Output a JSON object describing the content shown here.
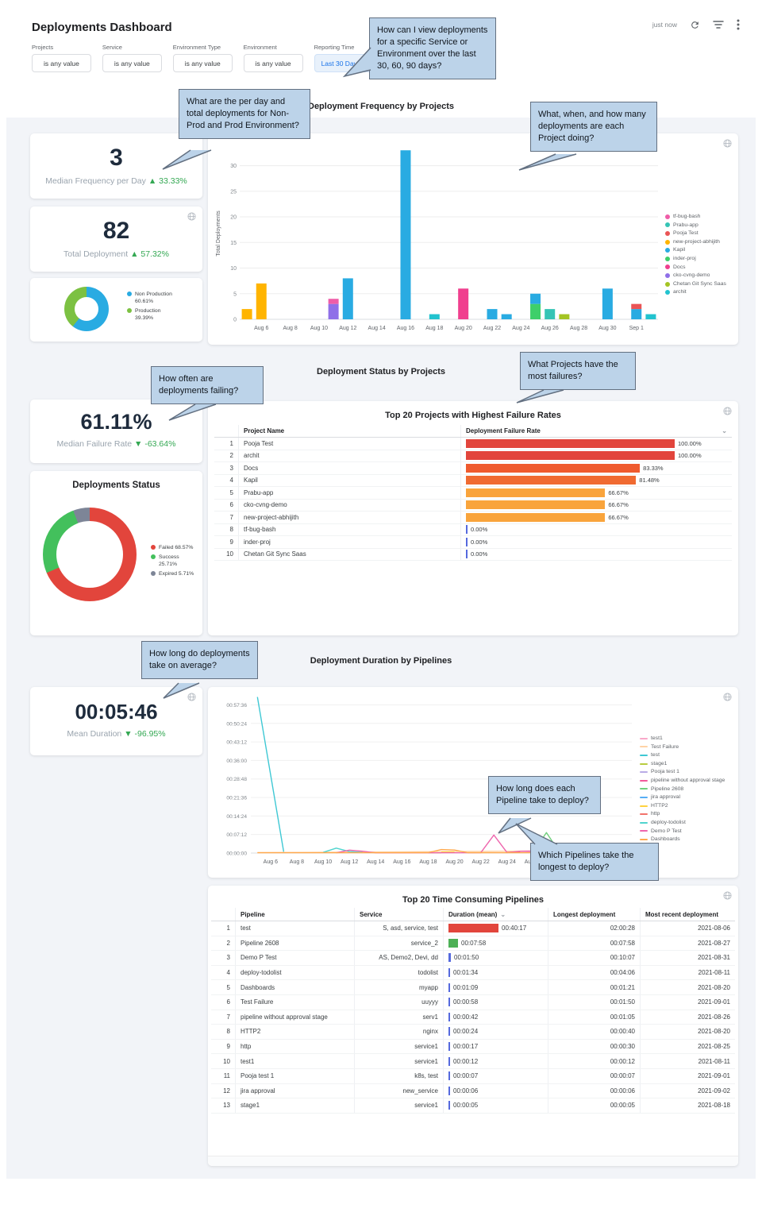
{
  "header": {
    "title": "Deployments Dashboard",
    "updated": "just now"
  },
  "filters": [
    {
      "label": "Projects",
      "value": "is any value",
      "highlighted": false
    },
    {
      "label": "Service",
      "value": "is any value",
      "highlighted": false
    },
    {
      "label": "Environment Type",
      "value": "is any value",
      "highlighted": false
    },
    {
      "label": "Environment",
      "value": "is any value",
      "highlighted": false
    },
    {
      "label": "Reporting Time",
      "value": "Last 30 Days",
      "highlighted": true
    }
  ],
  "sections": [
    "Deployment Frequency by Projects",
    "Deployment Status by Projects",
    "Deployment Duration by Pipelines"
  ],
  "callouts": [
    "How can I view deployments for a specific Service or Environment over the last 30, 60, 90 days?",
    "What are the per day and total deployments for Non-Prod and Prod Environment?",
    "What, when, and how many deployments are each Project doing?",
    "How often are deployments failing?",
    "What Projects have the most failures?",
    "How long do deployments take on average?",
    "How long does each Pipeline take to deploy?",
    "Which Pipelines take the longest to deploy?"
  ],
  "tiles": {
    "median_frequency": {
      "value": "3",
      "label": "Median Frequency per Day",
      "delta": "▲ 33.33%"
    },
    "total_deployments": {
      "value": "82",
      "label": "Total Deployment",
      "delta": "▲ 57.32%"
    },
    "median_failure_rate": {
      "value": "61.11%",
      "label": "Median Failure Rate",
      "delta": "▼ -63.64%"
    },
    "mean_duration": {
      "value": "00:05:46",
      "label": "Mean Duration",
      "delta": "▼ -96.95%"
    }
  },
  "env_donut": {
    "segments": [
      {
        "label": "Non Production",
        "pct": 60.61,
        "color": "#29abe2"
      },
      {
        "label": "Production",
        "pct": 39.39,
        "color": "#7cc142"
      }
    ]
  },
  "status_donut": {
    "title": "Deployments Status",
    "segments": [
      {
        "label": "Failed",
        "pct": 68.57,
        "color": "#e2453c"
      },
      {
        "label": "Success",
        "pct": 25.71,
        "color": "#43c05c"
      },
      {
        "label": "Expired",
        "pct": 5.71,
        "color": "#7d8597"
      }
    ]
  },
  "chart_data": [
    {
      "type": "bar",
      "title": "Deployment Frequency by Projects",
      "ylabel": "Total Deployments",
      "yticks": [
        0,
        5,
        10,
        15,
        20,
        25,
        30
      ],
      "ylim": [
        0,
        33.5
      ],
      "x_start": "Aug 5",
      "x_labels": [
        "Aug 6",
        "Aug 8",
        "Aug 10",
        "Aug 12",
        "Aug 14",
        "Aug 16",
        "Aug 18",
        "Aug 20",
        "Aug 22",
        "Aug 24",
        "Aug 26",
        "Aug 28",
        "Aug 30",
        "Sep 1"
      ],
      "legend": [
        {
          "name": "tf-bug-bash",
          "color": "#ef5da8"
        },
        {
          "name": "Prabu-app",
          "color": "#35c4b5"
        },
        {
          "name": "Pooja Test",
          "color": "#ea5455"
        },
        {
          "name": "new-project-abhijith",
          "color": "#ffb400"
        },
        {
          "name": "Kapil",
          "color": "#29abe2"
        },
        {
          "name": "inder-proj",
          "color": "#3ecf6a"
        },
        {
          "name": "Docs",
          "color": "#f03f8e"
        },
        {
          "name": "cko-cvng-demo",
          "color": "#8f6fe8"
        },
        {
          "name": "Chetan Git Sync Saas",
          "color": "#a4c423"
        },
        {
          "name": "archit",
          "color": "#22c3cf"
        }
      ],
      "bars": [
        {
          "day": 0,
          "segments": [
            {
              "project": "new-project-abhijith",
              "value": 2
            }
          ]
        },
        {
          "day": 1,
          "segments": [
            {
              "project": "new-project-abhijith",
              "value": 7
            }
          ]
        },
        {
          "day": 6,
          "segments": [
            {
              "project": "cko-cvng-demo",
              "value": 3
            },
            {
              "project": "tf-bug-bash",
              "value": 1
            }
          ]
        },
        {
          "day": 7,
          "segments": [
            {
              "project": "Kapil",
              "value": 8
            }
          ]
        },
        {
          "day": 11,
          "segments": [
            {
              "project": "Kapil",
              "value": 33
            }
          ]
        },
        {
          "day": 13,
          "segments": [
            {
              "project": "archit",
              "value": 1
            }
          ]
        },
        {
          "day": 15,
          "segments": [
            {
              "project": "Docs",
              "value": 6
            }
          ]
        },
        {
          "day": 17,
          "segments": [
            {
              "project": "Kapil",
              "value": 2
            }
          ]
        },
        {
          "day": 18,
          "segments": [
            {
              "project": "Kapil",
              "value": 1
            }
          ]
        },
        {
          "day": 20,
          "segments": [
            {
              "project": "inder-proj",
              "value": 3
            },
            {
              "project": "Kapil",
              "value": 2
            }
          ]
        },
        {
          "day": 21,
          "segments": [
            {
              "project": "Prabu-app",
              "value": 2
            }
          ]
        },
        {
          "day": 22,
          "segments": [
            {
              "project": "Chetan Git Sync Saas",
              "value": 1
            }
          ]
        },
        {
          "day": 25,
          "segments": [
            {
              "project": "Kapil",
              "value": 6
            }
          ]
        },
        {
          "day": 27,
          "segments": [
            {
              "project": "Kapil",
              "value": 2
            },
            {
              "project": "Pooja Test",
              "value": 1
            }
          ]
        },
        {
          "day": 28,
          "segments": [
            {
              "project": "archit",
              "value": 1
            }
          ]
        }
      ]
    },
    {
      "type": "line",
      "title": "Deployment Duration by Pipelines",
      "ytick_labels": [
        "00:00:00",
        "00:07:12",
        "00:14:24",
        "00:21:36",
        "00:28:48",
        "00:36:00",
        "00:43:12",
        "00:50:24",
        "00:57:36"
      ],
      "ytick_seconds": [
        0,
        432,
        864,
        1296,
        1728,
        2160,
        2592,
        3024,
        3456
      ],
      "ymax_seconds": 3650,
      "x_labels": [
        "Aug 6",
        "Aug 8",
        "Aug 10",
        "Aug 12",
        "Aug 14",
        "Aug 16",
        "Aug 18",
        "Aug 20",
        "Aug 22",
        "Aug 24",
        "Aug 26",
        "Aug 28",
        "Aug 30",
        "Sep 1"
      ],
      "series": [
        {
          "name": "test1",
          "color": "#f9a8c9",
          "points": [
            [
              6,
              12
            ],
            [
              7,
              12
            ]
          ]
        },
        {
          "name": "Test Failure",
          "color": "#ffd3a6",
          "points": [
            [
              0,
              10
            ],
            [
              27,
              58
            ]
          ]
        },
        {
          "name": "test",
          "color": "#3fc8d4",
          "points": [
            [
              0,
              3640
            ],
            [
              2,
              30
            ]
          ]
        },
        {
          "name": "stage1",
          "color": "#b8cc3f",
          "points": [
            [
              13,
              5
            ],
            [
              14,
              5
            ]
          ]
        },
        {
          "name": "Pooja test 1",
          "color": "#b9abe6",
          "points": [
            [
              27,
              7
            ],
            [
              28,
              7
            ]
          ]
        },
        {
          "name": "pipeline without approval stage",
          "color": "#f2599b",
          "points": [
            [
              20,
              42
            ],
            [
              21,
              35
            ]
          ]
        },
        {
          "name": "Pipeline 2608",
          "color": "#6fcf7c",
          "points": [
            [
              21,
              15
            ],
            [
              22,
              478
            ],
            [
              23,
              15
            ]
          ]
        },
        {
          "name": "jira approval",
          "color": "#56aef5",
          "points": [
            [
              27,
              6
            ],
            [
              28,
              6
            ]
          ]
        },
        {
          "name": "HTTP2",
          "color": "#ffd23f",
          "points": [
            [
              14,
              24
            ],
            [
              15,
              24
            ]
          ]
        },
        {
          "name": "http",
          "color": "#f2736b",
          "points": [
            [
              19,
              17
            ],
            [
              20,
              30
            ]
          ]
        },
        {
          "name": "deploy-todolist",
          "color": "#4fd4ce",
          "points": [
            [
              5,
              15
            ],
            [
              6,
              115
            ],
            [
              7,
              35
            ],
            [
              8,
              15
            ]
          ]
        },
        {
          "name": "Demo P Test",
          "color": "#ee66ad",
          "points": [
            [
              6,
              5
            ],
            [
              7,
              68
            ],
            [
              8,
              42
            ],
            [
              9,
              5
            ],
            [
              17,
              8
            ],
            [
              18,
              420
            ],
            [
              19,
              12
            ],
            [
              20,
              42
            ],
            [
              21,
              48
            ],
            [
              22,
              30
            ],
            [
              23,
              20
            ]
          ]
        },
        {
          "name": "Dashboards",
          "color": "#ffa94d",
          "points": [
            [
              0,
              8
            ],
            [
              13,
              10
            ],
            [
              14,
              82
            ],
            [
              15,
              70
            ],
            [
              16,
              10
            ],
            [
              27,
              8
            ]
          ]
        }
      ]
    }
  ],
  "failure_table": {
    "title": "Top 20 Projects with Highest Failure Rates",
    "columns": [
      "Project Name",
      "Deployment Failure Rate"
    ],
    "rows": [
      {
        "rank": 1,
        "name": "Pooja Test",
        "rate": "100.00%",
        "value": 100,
        "color": "#e2453c"
      },
      {
        "rank": 2,
        "name": "archit",
        "rate": "100.00%",
        "value": 100,
        "color": "#e2453c"
      },
      {
        "rank": 3,
        "name": "Docs",
        "rate": "83.33%",
        "value": 83.33,
        "color": "#ef5a2e"
      },
      {
        "rank": 4,
        "name": "Kapil",
        "rate": "81.48%",
        "value": 81.48,
        "color": "#f06a31"
      },
      {
        "rank": 5,
        "name": "Prabu-app",
        "rate": "66.67%",
        "value": 66.67,
        "color": "#f9a43c"
      },
      {
        "rank": 6,
        "name": "cko-cvng-demo",
        "rate": "66.67%",
        "value": 66.67,
        "color": "#f9a43c"
      },
      {
        "rank": 7,
        "name": "new-project-abhijith",
        "rate": "66.67%",
        "value": 66.67,
        "color": "#f9a43c"
      },
      {
        "rank": 8,
        "name": "tf-bug-bash",
        "rate": "0.00%",
        "value": 0,
        "color": "#5569de"
      },
      {
        "rank": 9,
        "name": "inder-proj",
        "rate": "0.00%",
        "value": 0,
        "color": "#5569de"
      },
      {
        "rank": 10,
        "name": "Chetan Git Sync Saas",
        "rate": "0.00%",
        "value": 0,
        "color": "#5569de"
      }
    ]
  },
  "pipelines_table": {
    "title": "Top 20 Time Consuming Pipelines",
    "columns": [
      "Pipeline",
      "Service",
      "Duration (mean)",
      "Longest deployment",
      "Most recent deployment"
    ],
    "rows": [
      {
        "rank": 1,
        "pipeline": "test",
        "service": "S, asd, service, test",
        "duration": "00:40:17",
        "duration_seconds": 2417,
        "bar_color": "#e2453c",
        "longest": "02:00:28",
        "recent": "2021-08-06"
      },
      {
        "rank": 2,
        "pipeline": "Pipeline 2608",
        "service": "service_2",
        "duration": "00:07:58",
        "duration_seconds": 478,
        "bar_color": "#4db056",
        "longest": "00:07:58",
        "recent": "2021-08-27"
      },
      {
        "rank": 3,
        "pipeline": "Demo P Test",
        "service": "AS, Demo2, Devi, dd",
        "duration": "00:01:50",
        "duration_seconds": 110,
        "bar_color": "#5569de",
        "longest": "00:10:07",
        "recent": "2021-08-31"
      },
      {
        "rank": 4,
        "pipeline": "deploy-todolist",
        "service": "todolist",
        "duration": "00:01:34",
        "duration_seconds": 94,
        "bar_color": "#5569de",
        "longest": "00:04:06",
        "recent": "2021-08-11"
      },
      {
        "rank": 5,
        "pipeline": "Dashboards",
        "service": "myapp",
        "duration": "00:01:09",
        "duration_seconds": 69,
        "bar_color": "#5569de",
        "longest": "00:01:21",
        "recent": "2021-08-20"
      },
      {
        "rank": 6,
        "pipeline": "Test Failure",
        "service": "uuyyy",
        "duration": "00:00:58",
        "duration_seconds": 58,
        "bar_color": "#5569de",
        "longest": "00:01:50",
        "recent": "2021-09-01"
      },
      {
        "rank": 7,
        "pipeline": "pipeline without approval stage",
        "service": "serv1",
        "duration": "00:00:42",
        "duration_seconds": 42,
        "bar_color": "#5569de",
        "longest": "00:01:05",
        "recent": "2021-08-26"
      },
      {
        "rank": 8,
        "pipeline": "HTTP2",
        "service": "nginx",
        "duration": "00:00:24",
        "duration_seconds": 24,
        "bar_color": "#5569de",
        "longest": "00:00:40",
        "recent": "2021-08-20"
      },
      {
        "rank": 9,
        "pipeline": "http",
        "service": "service1",
        "duration": "00:00:17",
        "duration_seconds": 17,
        "bar_color": "#5569de",
        "longest": "00:00:30",
        "recent": "2021-08-25"
      },
      {
        "rank": 10,
        "pipeline": "test1",
        "service": "service1",
        "duration": "00:00:12",
        "duration_seconds": 12,
        "bar_color": "#5569de",
        "longest": "00:00:12",
        "recent": "2021-08-11"
      },
      {
        "rank": 11,
        "pipeline": "Pooja test 1",
        "service": "k8s, test",
        "duration": "00:00:07",
        "duration_seconds": 7,
        "bar_color": "#5569de",
        "longest": "00:00:07",
        "recent": "2021-09-01"
      },
      {
        "rank": 12,
        "pipeline": "jira approval",
        "service": "new_service",
        "duration": "00:00:06",
        "duration_seconds": 6,
        "bar_color": "#5569de",
        "longest": "00:00:06",
        "recent": "2021-09-02"
      },
      {
        "rank": 13,
        "pipeline": "stage1",
        "service": "service1",
        "duration": "00:00:05",
        "duration_seconds": 5,
        "bar_color": "#5569de",
        "longest": "00:00:05",
        "recent": "2021-08-18"
      }
    ]
  }
}
